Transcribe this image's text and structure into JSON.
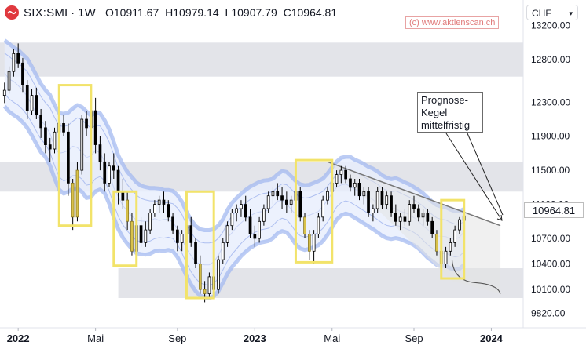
{
  "header": {
    "symbol": "SIX:SMI",
    "separator": "·",
    "interval": "1W",
    "open": "O10911.67",
    "high": "H10979.14",
    "low": "L10907.79",
    "close": "C10964.81"
  },
  "watermark": "(c) www.aktienscan.ch",
  "currency": "CHF",
  "annotation": [
    "Prognose-",
    "Kegel",
    "mittelfristig"
  ],
  "price_label": "10964.81",
  "colors": {
    "up": "#ffffff",
    "down": "#000000",
    "highlight_box": "#f2e36a",
    "highlight_candle": "#d9c24a",
    "band_outer": "#9fb6f0",
    "band_fill": "#e7edfd",
    "zone": "#d9dbe1",
    "forecast_line": "#777777"
  },
  "chart_data": {
    "type": "candlestick",
    "title": "",
    "xlabel": "",
    "ylabel": "",
    "ylim": [
      9650,
      13500
    ],
    "x_range": [
      "2021-12-06",
      "2024-02-19"
    ],
    "y_ticks": [
      "13200.00",
      "12800.00",
      "12300.00",
      "11900.00",
      "11500.00",
      "11100.00",
      "10700.00",
      "10400.00",
      "10100.00",
      "9820.00"
    ],
    "x_ticks": [
      {
        "date": "2022-01-03",
        "label": "2022",
        "bold": true
      },
      {
        "date": "2022-05-02",
        "label": "Mai",
        "bold": false
      },
      {
        "date": "2022-09-05",
        "label": "Sep",
        "bold": false
      },
      {
        "date": "2023-01-02",
        "label": "2023",
        "bold": true
      },
      {
        "date": "2023-05-01",
        "label": "Mai",
        "bold": false
      },
      {
        "date": "2023-09-04",
        "label": "Sep",
        "bold": false
      },
      {
        "date": "2024-01-01",
        "label": "2024",
        "bold": true
      }
    ],
    "start_week": "2021-12-13",
    "candles_ohlc": [
      [
        12380,
        12530,
        12290,
        12440
      ],
      [
        12440,
        12720,
        12400,
        12660
      ],
      [
        12660,
        12920,
        12600,
        12870
      ],
      [
        12870,
        12990,
        12700,
        12760
      ],
      [
        12760,
        12820,
        12420,
        12500
      ],
      [
        12500,
        12560,
        12100,
        12200
      ],
      [
        12200,
        12450,
        12150,
        12380
      ],
      [
        12380,
        12470,
        12100,
        12150
      ],
      [
        12150,
        12220,
        11880,
        12000
      ],
      [
        12000,
        12080,
        11700,
        11800
      ],
      [
        11800,
        11880,
        11600,
        11750
      ],
      [
        11750,
        12000,
        11700,
        11950
      ],
      [
        11950,
        12100,
        11850,
        12050
      ],
      [
        12050,
        12150,
        11900,
        11950
      ],
      [
        11950,
        12050,
        11200,
        11350
      ],
      [
        11350,
        11400,
        10800,
        10950
      ],
      [
        10950,
        11600,
        10900,
        11500
      ],
      [
        11500,
        12150,
        11450,
        12100
      ],
      [
        12100,
        12200,
        11900,
        12000
      ],
      [
        12000,
        12320,
        11950,
        12200
      ],
      [
        12200,
        12350,
        11700,
        11800
      ],
      [
        11800,
        11900,
        11500,
        11600
      ],
      [
        11600,
        11700,
        11250,
        11350
      ],
      [
        11350,
        11600,
        11300,
        11550
      ],
      [
        11550,
        11700,
        11400,
        11500
      ],
      [
        11500,
        11550,
        11100,
        11250
      ],
      [
        11250,
        11400,
        11050,
        11150
      ],
      [
        11150,
        11250,
        10800,
        10900
      ],
      [
        10900,
        11000,
        10500,
        10550
      ],
      [
        10550,
        10900,
        10450,
        10850
      ],
      [
        10850,
        10950,
        10600,
        10650
      ],
      [
        10650,
        10900,
        10600,
        10800
      ],
      [
        10800,
        11050,
        10750,
        11000
      ],
      [
        11000,
        11150,
        10950,
        11100
      ],
      [
        11100,
        11200,
        11000,
        11150
      ],
      [
        11150,
        11250,
        11000,
        11100
      ],
      [
        11100,
        11150,
        10900,
        10950
      ],
      [
        10950,
        11000,
        10750,
        10800
      ],
      [
        10800,
        10850,
        10550,
        10650
      ],
      [
        10650,
        10800,
        10550,
        10750
      ],
      [
        10750,
        10900,
        10700,
        10850
      ],
      [
        10850,
        10950,
        10600,
        10650
      ],
      [
        10650,
        10700,
        10350,
        10400
      ],
      [
        10400,
        10500,
        10050,
        10100
      ],
      [
        10100,
        10200,
        9950,
        10050
      ],
      [
        10050,
        10300,
        10000,
        10250
      ],
      [
        10250,
        10350,
        10050,
        10100
      ],
      [
        10100,
        10500,
        10050,
        10450
      ],
      [
        10450,
        10700,
        10400,
        10650
      ],
      [
        10650,
        10900,
        10600,
        10850
      ],
      [
        10850,
        11050,
        10800,
        11000
      ],
      [
        11000,
        11100,
        10900,
        11050
      ],
      [
        11050,
        11150,
        10950,
        11100
      ],
      [
        11100,
        11200,
        10900,
        10950
      ],
      [
        10950,
        11050,
        10700,
        10750
      ],
      [
        10750,
        10850,
        10600,
        10700
      ],
      [
        10700,
        10950,
        10650,
        10900
      ],
      [
        10900,
        11100,
        10850,
        11050
      ],
      [
        11050,
        11250,
        11000,
        11200
      ],
      [
        11200,
        11300,
        11100,
        11250
      ],
      [
        11250,
        11350,
        11150,
        11200
      ],
      [
        11200,
        11300,
        11050,
        11150
      ],
      [
        11150,
        11250,
        11000,
        11100
      ],
      [
        11100,
        11200,
        11000,
        11150
      ],
      [
        11150,
        11300,
        11100,
        11250
      ],
      [
        11250,
        11300,
        10900,
        10950
      ],
      [
        10950,
        11000,
        10700,
        10750
      ],
      [
        10750,
        10800,
        10450,
        10550
      ],
      [
        10550,
        10800,
        10400,
        10750
      ],
      [
        10750,
        11000,
        10700,
        10950
      ],
      [
        10950,
        11200,
        10900,
        11150
      ],
      [
        11150,
        11300,
        11100,
        11250
      ],
      [
        11250,
        11400,
        11200,
        11350
      ],
      [
        11350,
        11500,
        11300,
        11450
      ],
      [
        11450,
        11550,
        11350,
        11500
      ],
      [
        11500,
        11550,
        11350,
        11400
      ],
      [
        11400,
        11450,
        11250,
        11300
      ],
      [
        11300,
        11400,
        11200,
        11350
      ],
      [
        11350,
        11400,
        11150,
        11200
      ],
      [
        11200,
        11300,
        11100,
        11250
      ],
      [
        11250,
        11300,
        10950,
        11000
      ],
      [
        11000,
        11100,
        10900,
        11050
      ],
      [
        11050,
        11300,
        11000,
        11250
      ],
      [
        11250,
        11300,
        11050,
        11100
      ],
      [
        11100,
        11250,
        11050,
        11200
      ],
      [
        11200,
        11250,
        10950,
        11000
      ],
      [
        11000,
        11100,
        10850,
        10900
      ],
      [
        10900,
        11000,
        10800,
        10950
      ],
      [
        10950,
        11050,
        10850,
        10900
      ],
      [
        10900,
        11150,
        10850,
        11100
      ],
      [
        11100,
        11200,
        11000,
        11050
      ],
      [
        11050,
        11100,
        10900,
        10950
      ],
      [
        10950,
        11050,
        10850,
        11000
      ],
      [
        11000,
        11050,
        10850,
        10900
      ],
      [
        10900,
        10950,
        10700,
        10750
      ],
      [
        10750,
        10800,
        10500,
        10550
      ],
      [
        10550,
        10650,
        10330,
        10400
      ],
      [
        10400,
        10600,
        10350,
        10550
      ],
      [
        10550,
        10700,
        10500,
        10650
      ],
      [
        10650,
        10850,
        10600,
        10800
      ],
      [
        10800,
        10950,
        10750,
        10920
      ],
      [
        10911.67,
        10979.14,
        10907.79,
        10964.81
      ]
    ],
    "highlighted_candles": [
      15,
      16,
      27,
      28,
      43,
      44,
      66,
      67,
      95,
      96
    ],
    "highlight_boxes": [
      {
        "from": "2022-03-07",
        "to": "2022-04-25",
        "low": 10850,
        "high": 12500
      },
      {
        "from": "2022-05-30",
        "to": "2022-07-04",
        "low": 10380,
        "high": 11250
      },
      {
        "from": "2022-09-19",
        "to": "2022-10-31",
        "low": 10000,
        "high": 11250
      },
      {
        "from": "2023-03-06",
        "to": "2023-05-01",
        "low": 10420,
        "high": 11620
      },
      {
        "from": "2023-10-16",
        "to": "2023-11-20",
        "low": 10230,
        "high": 11150
      }
    ],
    "zones": [
      {
        "low": 12600,
        "high": 13000,
        "from": "2021-12-06",
        "to": "2024-02-19"
      },
      {
        "low": 11250,
        "high": 11600,
        "from": "2021-12-06",
        "to": "2024-02-19"
      },
      {
        "low": 10000,
        "high": 10350,
        "from": "2022-06-06",
        "to": "2024-02-19"
      }
    ],
    "forecast": {
      "from": "2023-04-24",
      "to": "2024-01-15",
      "upper_start": 11600,
      "upper_end": 10850,
      "lower_start": 10200,
      "lower_end": 10050
    }
  }
}
